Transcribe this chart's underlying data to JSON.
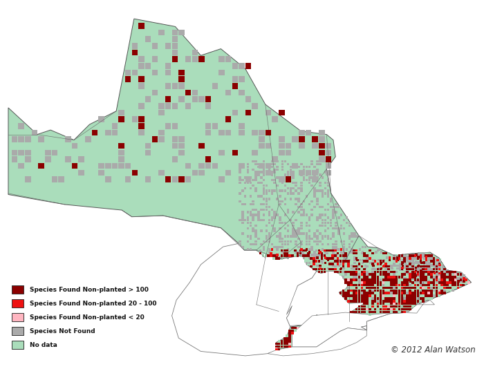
{
  "copyright": "© 2012 Alan Watson",
  "legend_items": [
    {
      "label": "Species Found Non-planted > 100",
      "color": "#8B0000"
    },
    {
      "label": "Species Found Non-planted 20 - 100",
      "color": "#EE1111"
    },
    {
      "label": "Species Found Non-planted < 20",
      "color": "#FFB6C1"
    },
    {
      "label": "Species Not Found",
      "color": "#AAAAAA"
    },
    {
      "label": "No data",
      "color": "#AADDBB"
    }
  ],
  "bg_color": "#FFFFFF",
  "no_data_color": "#AADDBB",
  "not_found_color": "#AAAAAA",
  "dark_red": "#8B0000",
  "med_red": "#EE1111",
  "light_pink": "#FFB6C1",
  "figsize": [
    7.0,
    5.34
  ],
  "dpi": 100,
  "lon0": -95.5,
  "lon1": -73.8,
  "lat0": 41.6,
  "lat1": 57.2
}
